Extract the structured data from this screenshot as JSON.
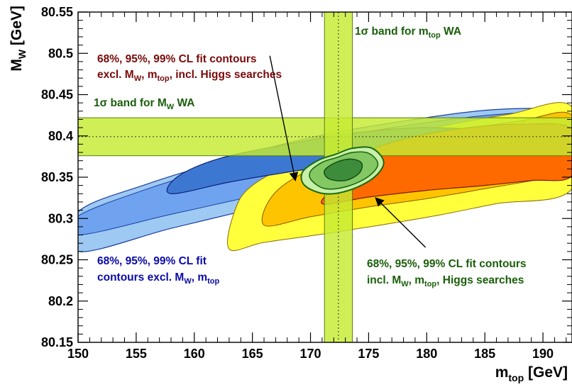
{
  "chart_data": {
    "type": "contour",
    "xlabel": {
      "main": "m",
      "sub": "top",
      "unit": " [GeV]"
    },
    "ylabel": {
      "main": "M",
      "sub": "W",
      "unit": " [GeV]"
    },
    "xlim": [
      150,
      192.5
    ],
    "ylim": [
      80.15,
      80.55
    ],
    "x_ticks": [
      150,
      155,
      160,
      165,
      170,
      175,
      180,
      185,
      190
    ],
    "y_ticks": [
      80.15,
      80.2,
      80.25,
      80.3,
      80.35,
      80.4,
      80.45,
      80.5,
      80.55
    ],
    "x_tick_labels": [
      "150",
      "155",
      "160",
      "165",
      "170",
      "175",
      "180",
      "185",
      "190"
    ],
    "y_tick_labels": [
      "80.15",
      "80.2",
      "80.25",
      "80.3",
      "80.35",
      "80.4",
      "80.45",
      "80.5",
      "80.55"
    ],
    "grid": false,
    "colors": {
      "band": "#c6ec32",
      "band_edge": "#5a7d10",
      "blue_99": "#9ec9f2",
      "blue_95": "#6fa3f0",
      "blue_68": "#3c78d2",
      "orange_99": "#ffff3c",
      "orange_95": "#ffc400",
      "orange_68": "#ff6a00",
      "green_99": "#c8f0a8",
      "green_95": "#84c864",
      "green_68": "#3c8c3c",
      "text_red": "#7a0a0a",
      "text_blue": "#0a0aa8",
      "text_green": "#1a5e0a"
    },
    "bands": {
      "mw": {
        "center": 80.399,
        "low": 80.376,
        "high": 80.422
      },
      "mtop": {
        "center": 172.4,
        "low": 171.2,
        "high": 173.6
      }
    },
    "contours": {
      "blue": {
        "99": [
          [
            150,
            80.26
          ],
          [
            158,
            80.288
          ],
          [
            166,
            80.315
          ],
          [
            173,
            80.338
          ],
          [
            180,
            80.362
          ],
          [
            186,
            80.385
          ],
          [
            192.5,
            80.408
          ],
          [
            192.5,
            80.43
          ],
          [
            186,
            80.432
          ],
          [
            178,
            80.418
          ],
          [
            170,
            80.398
          ],
          [
            163,
            80.372
          ],
          [
            156,
            80.342
          ],
          [
            150,
            80.308
          ]
        ],
        "95": [
          [
            150,
            80.28
          ],
          [
            158,
            80.305
          ],
          [
            166,
            80.33
          ],
          [
            173,
            80.352
          ],
          [
            180,
            80.372
          ],
          [
            186,
            80.39
          ],
          [
            192.5,
            80.408
          ],
          [
            192.5,
            80.428
          ],
          [
            186,
            80.426
          ],
          [
            178,
            80.412
          ],
          [
            170,
            80.392
          ],
          [
            163,
            80.366
          ],
          [
            156,
            80.336
          ],
          [
            150,
            80.303
          ]
        ],
        "68": [
          [
            158,
            80.33
          ],
          [
            163,
            80.344
          ],
          [
            168,
            80.356
          ],
          [
            173,
            80.366
          ],
          [
            178,
            80.375
          ],
          [
            184,
            80.38
          ],
          [
            188,
            80.382
          ],
          [
            189.5,
            80.395
          ],
          [
            186,
            80.405
          ],
          [
            180,
            80.41
          ],
          [
            174,
            80.404
          ],
          [
            168,
            80.39
          ],
          [
            162,
            80.372
          ],
          [
            158.5,
            80.35
          ]
        ]
      },
      "orange": {
        "99": [
          [
            163,
            80.263
          ],
          [
            166,
            80.271
          ],
          [
            171,
            80.281
          ],
          [
            176,
            80.292
          ],
          [
            181,
            80.304
          ],
          [
            186,
            80.318
          ],
          [
            192.5,
            80.336
          ],
          [
            192.5,
            80.435
          ],
          [
            187,
            80.426
          ],
          [
            181,
            80.411
          ],
          [
            175,
            80.394
          ],
          [
            169,
            80.369
          ],
          [
            165,
            80.34
          ],
          [
            163.5,
            80.31
          ]
        ],
        "95": [
          [
            166,
            80.292
          ],
          [
            170,
            80.302
          ],
          [
            175,
            80.314
          ],
          [
            180,
            80.324
          ],
          [
            185,
            80.336
          ],
          [
            190,
            80.348
          ],
          [
            192.5,
            80.355
          ],
          [
            192.5,
            80.425
          ],
          [
            188,
            80.418
          ],
          [
            182,
            80.405
          ],
          [
            176,
            80.388
          ],
          [
            171,
            80.366
          ],
          [
            167,
            80.332
          ]
        ],
        "68": [
          [
            171,
            80.318
          ],
          [
            175,
            80.326
          ],
          [
            180,
            80.334
          ],
          [
            185,
            80.34
          ],
          [
            189,
            80.346
          ],
          [
            192.5,
            80.352
          ],
          [
            192.5,
            80.408
          ],
          [
            188,
            80.414
          ],
          [
            183,
            80.409
          ],
          [
            178,
            80.396
          ],
          [
            174,
            80.375
          ],
          [
            172.5,
            80.345
          ]
        ]
      },
      "green": {
        "99": [
          [
            169.3,
            80.356
          ],
          [
            170.6,
            80.37
          ],
          [
            172.2,
            80.378
          ],
          [
            173.6,
            80.385
          ],
          [
            175.3,
            80.385
          ],
          [
            176.3,
            80.368
          ],
          [
            175.4,
            80.349
          ],
          [
            173.3,
            80.334
          ],
          [
            171.2,
            80.33
          ],
          [
            169.5,
            80.34
          ]
        ],
        "95": [
          [
            170,
            80.357
          ],
          [
            171,
            80.368
          ],
          [
            172.3,
            80.374
          ],
          [
            173.6,
            80.38
          ],
          [
            175,
            80.379
          ],
          [
            175.8,
            80.366
          ],
          [
            175,
            80.351
          ],
          [
            173.2,
            80.339
          ],
          [
            171.3,
            80.336
          ],
          [
            170.1,
            80.346
          ]
        ],
        "68": [
          [
            171.2,
            80.358
          ],
          [
            172.2,
            80.368
          ],
          [
            173.5,
            80.372
          ],
          [
            174.4,
            80.367
          ],
          [
            174.2,
            80.355
          ],
          [
            173,
            80.346
          ],
          [
            171.6,
            80.348
          ]
        ]
      }
    },
    "band_labels": {
      "mtop": {
        "prefix": "1σ band for m",
        "sub": "top",
        "suffix": " WA"
      },
      "mw": {
        "prefix": "1σ band for M",
        "sub": "W",
        "suffix": " WA"
      }
    },
    "annotations": {
      "red": {
        "line1": "68%, 95%, 99% CL fit contours",
        "line2_a": "excl. M",
        "line2_a_sub": "W",
        "line2_b": ", m",
        "line2_b_sub": "top",
        "line2_c": ", incl. Higgs searches"
      },
      "blue": {
        "line1": "68%, 95%, 99% CL fit",
        "line2_a": "contours excl. M",
        "line2_a_sub": "W",
        "line2_b": ", m",
        "line2_b_sub": "top"
      },
      "green": {
        "line1": "68%, 95%, 99% CL fit contours",
        "line2_a": "incl. M",
        "line2_a_sub": "W",
        "line2_b": ", m",
        "line2_b_sub": "top",
        "line2_c": ", Higgs searches"
      }
    },
    "arrows": [
      {
        "from": [
          166.5,
          80.497
        ],
        "to": [
          168.7,
          80.346
        ]
      },
      {
        "from": [
          179.9,
          80.265
        ],
        "to": [
          175.6,
          80.325
        ]
      }
    ]
  }
}
